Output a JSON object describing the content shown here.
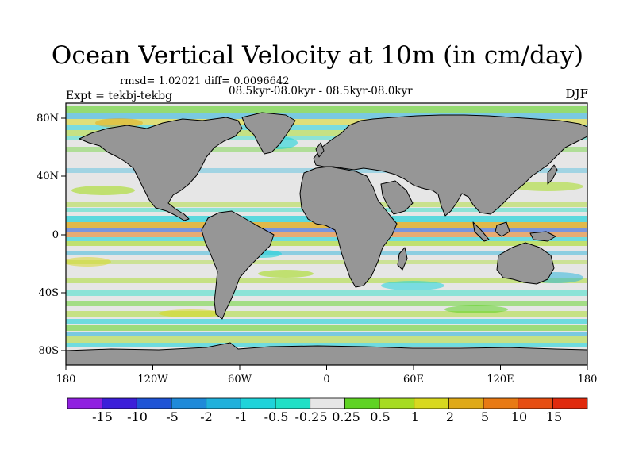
{
  "title": "Ocean Vertical Velocity at 10m (in cm/day)",
  "stats_line": "rmsd= 1.02021 diff= 0.0096642",
  "periods_line": "08.5kyr-08.0kyr - 08.5kyr-08.0kyr",
  "experiment_line": "Expt = tekbj-tekbg",
  "season": "DJF",
  "map": {
    "projection": "cylindrical-equidistant",
    "lon_range": [
      -180,
      180
    ],
    "lat_range": [
      -90,
      90
    ],
    "land_color": "#969696",
    "ocean_background_color": "#e6e6e6",
    "lat_ticks": [
      "80N",
      "40N",
      "0",
      "40S",
      "80S"
    ],
    "lon_ticks": [
      "180",
      "120W",
      "60W",
      "0",
      "60E",
      "120E",
      "180"
    ]
  },
  "colorbar": {
    "labels": [
      "-15",
      "-10",
      "-5",
      "-2",
      "-1",
      "-0.5",
      "-0.25",
      "0.25",
      "0.5",
      "1",
      "2",
      "5",
      "10",
      "15"
    ],
    "colors": [
      "#9020e0",
      "#3c1fd9",
      "#1f54d6",
      "#1f8ad9",
      "#20b1dc",
      "#1fd3da",
      "#20e0c6",
      "#e6e6e6",
      "#5fd324",
      "#a6dc21",
      "#d8d81f",
      "#dfa917",
      "#e87a14",
      "#e64e12",
      "#e02a0d"
    ]
  }
}
